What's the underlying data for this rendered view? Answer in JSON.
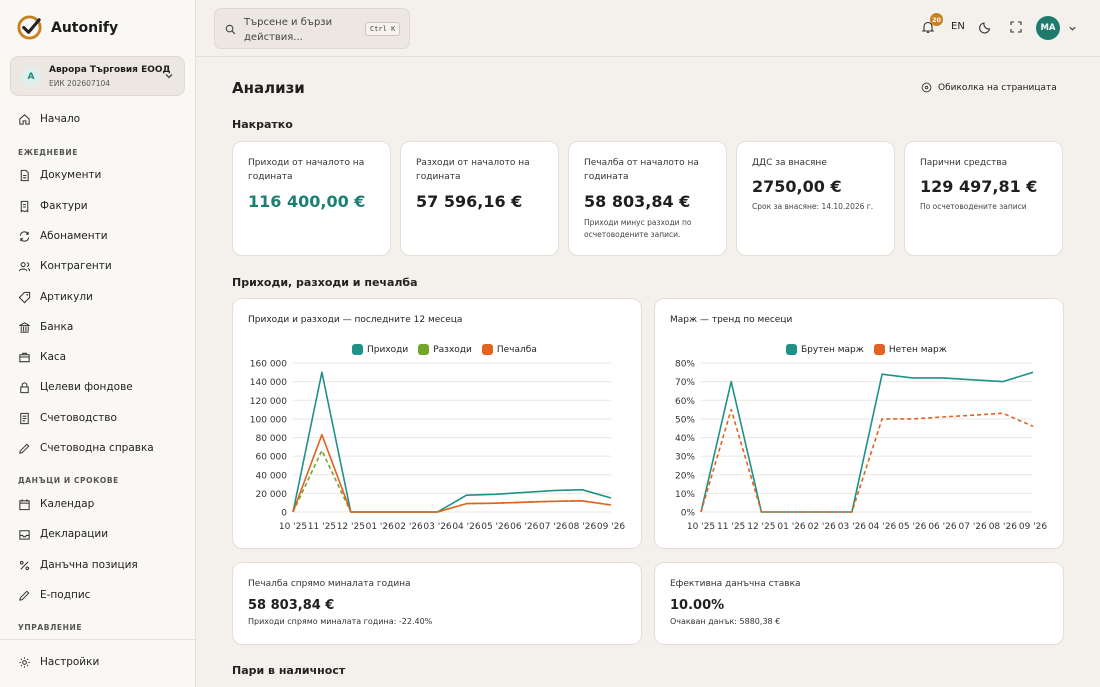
{
  "app": {
    "name": "Autonify"
  },
  "company": {
    "avatar": "А",
    "name": "Аврора Търговия ЕООД",
    "id": "ЕИК 202607104"
  },
  "sidebar": {
    "home": "Начало",
    "section_daily": "ЕЖЕДНЕВИЕ",
    "daily": [
      "Документи",
      "Фактури",
      "Абонаменти",
      "Контрагенти",
      "Артикули",
      "Банка",
      "Каса",
      "Целеви фондове",
      "Счетоводство",
      "Счетоводна справка"
    ],
    "section_taxes": "ДАНЪЦИ И СРОКОВЕ",
    "taxes": [
      "Календар",
      "Декларации",
      "Данъчна позиция",
      "Е-подпис"
    ],
    "section_manage": "УПРАВЛЕНИЕ",
    "settings": "Настройки"
  },
  "topbar": {
    "search_placeholder": "Търсене и бързи действия...",
    "shortcut": "Ctrl K",
    "notifications": "20",
    "lang": "EN",
    "user": "МА"
  },
  "page": {
    "title": "Анализи",
    "tour": "Обиколка на страницата"
  },
  "summary": {
    "title": "Накратко",
    "kpis": [
      {
        "label": "Приходи от началото на годината",
        "value": "116 400,00 €",
        "note": ""
      },
      {
        "label": "Разходи от началото на годината",
        "value": "57 596,16 €",
        "note": ""
      },
      {
        "label": "Печалба от началото на годината",
        "value": "58 803,84 €",
        "note": "Приходи минус разходи по осчетоводените записи."
      },
      {
        "label": "ДДС за внасяне",
        "value": "2750,00 €",
        "note": "Срок за внасяне: 14.10.2026 г."
      },
      {
        "label": "Парични средства",
        "value": "129 497,81 €",
        "note": "По осчетоводените записи"
      }
    ]
  },
  "section_pl": {
    "title": "Приходи, разходи и печалба"
  },
  "chart_data": [
    {
      "type": "line",
      "title": "Приходи и разходи — последните 12 месеца",
      "categories": [
        "10 '25",
        "11 '25",
        "12 '25",
        "01 '26",
        "02 '26",
        "03 '26",
        "04 '26",
        "05 '26",
        "06 '26",
        "07 '26",
        "08 '26",
        "09 '26"
      ],
      "ylim": [
        0,
        160000
      ],
      "yticks": [
        "160 000",
        "140 000",
        "120 000",
        "100 000",
        "80 000",
        "60 000",
        "40 000",
        "20 000",
        "0"
      ],
      "series": [
        {
          "name": "Приходи",
          "color": "#1f9187",
          "dashed": false,
          "values": [
            0,
            150000,
            0,
            0,
            0,
            0,
            18000,
            19000,
            21000,
            23000,
            24000,
            15000
          ]
        },
        {
          "name": "Разходи",
          "color": "#72a52a",
          "dashed": true,
          "values": [
            0,
            66000,
            0,
            0,
            0,
            0,
            9000,
            9500,
            10500,
            11500,
            12000,
            7500
          ]
        },
        {
          "name": "Печалба",
          "color": "#e2631f",
          "dashed": false,
          "values": [
            0,
            83000,
            0,
            0,
            0,
            0,
            9000,
            9500,
            10500,
            11500,
            12000,
            7500
          ]
        }
      ],
      "grid": true,
      "legend": "top"
    },
    {
      "type": "line",
      "title": "Марж — тренд по месеци",
      "categories": [
        "10 '25",
        "11 '25",
        "12 '25",
        "01 '26",
        "02 '26",
        "03 '26",
        "04 '26",
        "05 '26",
        "06 '26",
        "07 '26",
        "08 '26",
        "09 '26"
      ],
      "ylim": [
        0,
        80
      ],
      "yticks": [
        "80%",
        "70%",
        "60%",
        "50%",
        "40%",
        "30%",
        "20%",
        "10%",
        "0%"
      ],
      "series": [
        {
          "name": "Брутен марж",
          "color": "#1f9187",
          "dashed": false,
          "values": [
            0,
            70,
            0,
            0,
            0,
            0,
            74,
            72,
            72,
            71,
            70,
            75
          ]
        },
        {
          "name": "Нетен марж",
          "color": "#e2631f",
          "dashed": true,
          "values": [
            0,
            55,
            0,
            0,
            0,
            0,
            50,
            50,
            51,
            52,
            53,
            46
          ]
        }
      ],
      "grid": true,
      "legend": "top"
    }
  ],
  "mini": [
    {
      "label": "Печалба спрямо миналата година",
      "value": "58 803,84 €",
      "note": "Приходи спрямо миналата година: -22.40%"
    },
    {
      "label": "Ефективна данъчна ставка",
      "value": "10.00%",
      "note": "Очакван данък: 5880,38 €"
    }
  ],
  "section_cash": {
    "title": "Пари в наличност"
  }
}
